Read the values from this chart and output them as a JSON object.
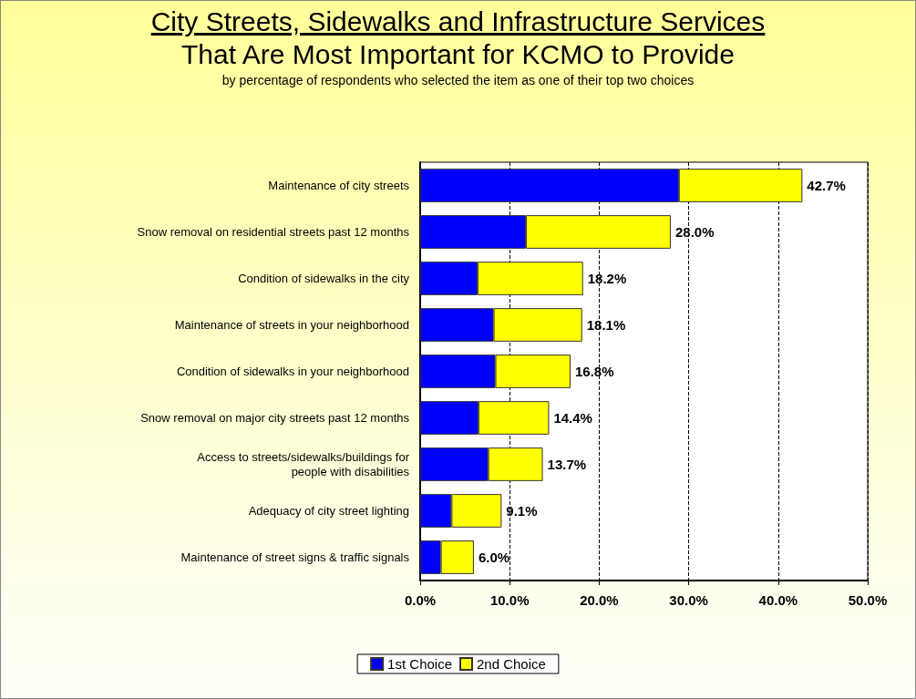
{
  "chart_data": {
    "type": "bar",
    "orientation": "horizontal",
    "stacked": true,
    "title": "City Streets, Sidewalks and Infrastructure Services\nThat Are Most Important for KCMO to Provide",
    "subtitle": "by percentage of respondents who selected the item as one of their top two choices",
    "categories": [
      "Maintenance of city streets",
      "Snow removal on residential streets past 12 months",
      "Condition of sidewalks in the city",
      "Maintenance of streets in your neighborhood",
      "Condition of sidewalks in your neighborhood",
      "Snow removal on major city streets past 12 months",
      "Access to streets/sidewalks/buildings for\npeople with disabilities",
      "Adequacy of city street lighting",
      "Maintenance of street signs & traffic signals"
    ],
    "series": [
      {
        "name": "1st Choice",
        "color": "#0000ff",
        "values": [
          28.9,
          11.8,
          6.4,
          8.2,
          8.4,
          6.5,
          7.6,
          3.5,
          2.3
        ]
      },
      {
        "name": "2nd Choice",
        "color": "#ffff00",
        "values": [
          13.8,
          16.2,
          11.8,
          9.9,
          8.4,
          7.9,
          6.1,
          5.6,
          3.7
        ]
      }
    ],
    "totals": [
      "42.7%",
      "28.0%",
      "18.2%",
      "18.1%",
      "16.8%",
      "14.4%",
      "13.7%",
      "9.1%",
      "6.0%"
    ],
    "xlim": [
      0,
      50
    ],
    "xticks": [
      {
        "value": 0,
        "label": "0.0%"
      },
      {
        "value": 10,
        "label": "10.0%"
      },
      {
        "value": 20,
        "label": "20.0%"
      },
      {
        "value": 30,
        "label": "30.0%"
      },
      {
        "value": 40,
        "label": "40.0%"
      },
      {
        "value": 50,
        "label": "50.0%"
      }
    ],
    "grid": "x",
    "legend": "bottom"
  }
}
